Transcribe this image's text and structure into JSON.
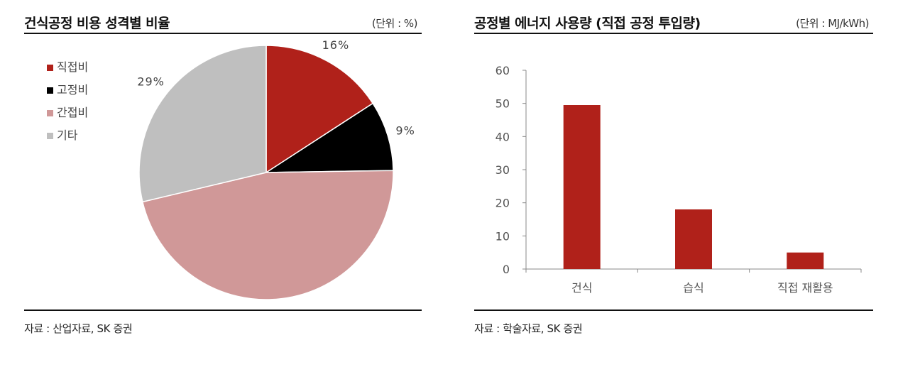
{
  "left": {
    "title": "건식공정 비용 성격별 비율",
    "unit": "(단위 : %)",
    "source": "자료 : 산업자료, SK 증권"
  },
  "right": {
    "title": "공정별 에너지 사용량 (직접 공정 투입량)",
    "unit": "(단위 : MJ/kWh)",
    "source": "자료 : 학술자료, SK 증권"
  },
  "chart_data": [
    {
      "type": "pie",
      "title": "건식공정 비용 성격별 비율",
      "legend_position": "top-left",
      "slices": [
        {
          "name": "직접비",
          "value": 16,
          "label": "16%",
          "color": "#b0211a"
        },
        {
          "name": "고정비",
          "value": 9,
          "label": "9%",
          "color": "#000000"
        },
        {
          "name": "간접비",
          "value": 47,
          "label": "47%",
          "color": "#d09898"
        },
        {
          "name": "기타",
          "value": 29,
          "label": "29%",
          "color": "#bfbfbf"
        }
      ]
    },
    {
      "type": "bar",
      "title": "공정별 에너지 사용량 (직접 공정 투입량)",
      "categories": [
        "건식",
        "습식",
        "직접 재활용"
      ],
      "values": [
        49.5,
        18,
        5
      ],
      "yticks": [
        "0",
        "10",
        "20",
        "30",
        "40",
        "50",
        "60"
      ],
      "ylim": [
        0,
        60
      ],
      "bar_color": "#b0211a",
      "grid": false
    }
  ]
}
